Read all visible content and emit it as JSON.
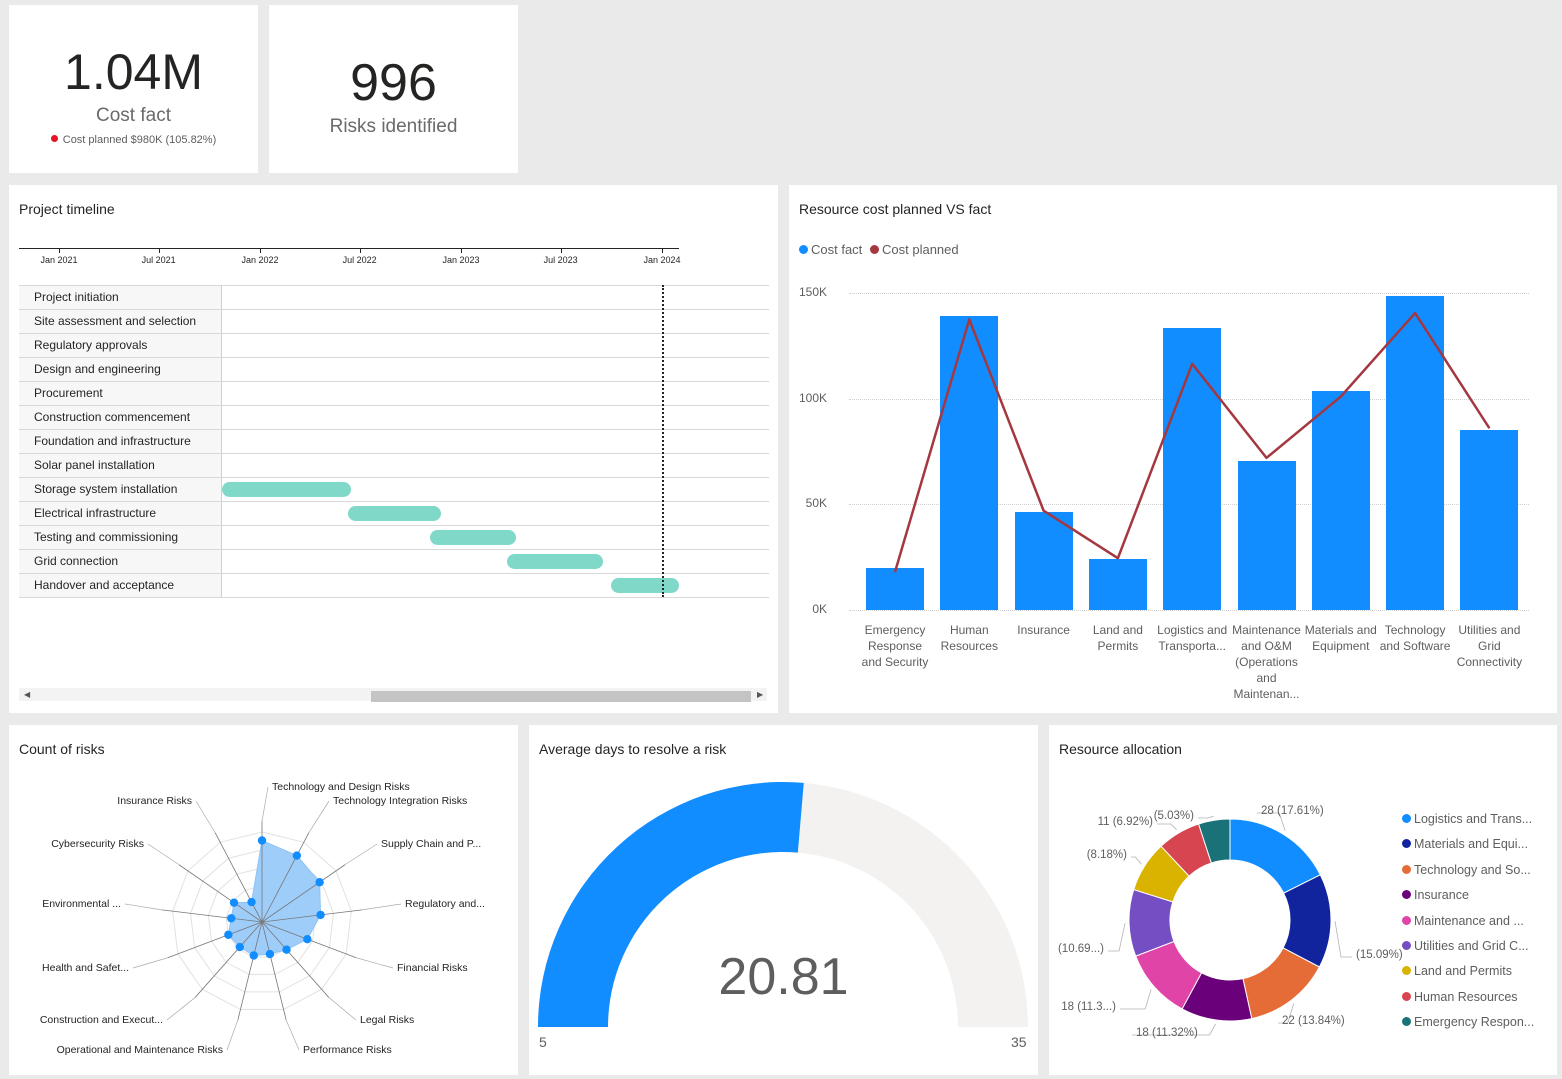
{
  "kpi_cost": {
    "value": "1.04M",
    "label": "Cost fact",
    "sub": "Cost planned $980K (105.82%)",
    "status_color": "#e81123"
  },
  "kpi_risks": {
    "value": "996",
    "label": "Risks identified"
  },
  "timeline": {
    "title": "Project timeline",
    "ticks": [
      "Jan 2021",
      "Jul 2021",
      "Jan 2022",
      "Jul 2022",
      "Jan 2023",
      "Jul 2023",
      "Jan 2024"
    ],
    "tasks": [
      {
        "label": "Project initiation",
        "start": null,
        "end": null
      },
      {
        "label": "Site assessment and selection",
        "start": null,
        "end": null
      },
      {
        "label": "Regulatory approvals",
        "start": null,
        "end": null
      },
      {
        "label": "Design and engineering",
        "start": null,
        "end": null
      },
      {
        "label": "Procurement",
        "start": null,
        "end": null
      },
      {
        "label": "Construction commencement",
        "start": null,
        "end": null
      },
      {
        "label": "Foundation and infrastructure",
        "start": null,
        "end": null
      },
      {
        "label": "Solar panel installation",
        "start": null,
        "end": null
      },
      {
        "label": "Storage system installation",
        "start": "2021-10-01",
        "end": "2022-06-15"
      },
      {
        "label": "Electrical infrastructure",
        "start": "2022-06-10",
        "end": "2022-11-25"
      },
      {
        "label": "Testing and commissioning",
        "start": "2022-11-05",
        "end": "2023-04-10"
      },
      {
        "label": "Grid connection",
        "start": "2023-03-25",
        "end": "2023-09-15"
      },
      {
        "label": "Handover and acceptance",
        "start": "2023-10-01",
        "end": "2024-02-01"
      }
    ],
    "today": "2024-01-01",
    "bar_color": "#7fd8c8"
  },
  "resource_cost": {
    "title": "Resource cost planned VS fact",
    "legend": [
      {
        "label": "Cost fact",
        "color": "#118dff"
      },
      {
        "label": "Cost planned",
        "color": "#a4373f"
      }
    ],
    "y_ticks": [
      "150K",
      "100K",
      "50K",
      "0K"
    ]
  },
  "risks_radar": {
    "title": "Count of risks",
    "labels": [
      "Technology and Design Risks",
      "Technology Integration Risks",
      "Supply Chain and P...",
      "Regulatory and...",
      "Financial Risks",
      "Legal Risks",
      "Performance Risks",
      "Operational and Maintenance Risks",
      "Construction and Execut...",
      "Health and Safet...",
      "Environmental ...",
      "Cybersecurity Risks",
      "Insurance Risks"
    ],
    "color": "#118dff"
  },
  "gauge": {
    "title": "Average days to resolve a risk",
    "value": "20.81",
    "min": "5",
    "max": "35",
    "color": "#118dff",
    "track_color": "#f3f2f1"
  },
  "resource_allocation": {
    "title": "Resource allocation",
    "legend": [
      {
        "label": "Logistics and Trans...",
        "color": "#118dff"
      },
      {
        "label": "Materials and Equi...",
        "color": "#12239e"
      },
      {
        "label": "Technology and So...",
        "color": "#e66c37"
      },
      {
        "label": "Insurance",
        "color": "#6b007b"
      },
      {
        "label": "Maintenance and ...",
        "color": "#e044a7"
      },
      {
        "label": "Utilities and Grid C...",
        "color": "#744ec2"
      },
      {
        "label": "Land and Permits",
        "color": "#d9b300"
      },
      {
        "label": "Human Resources",
        "color": "#d64550"
      },
      {
        "label": "Emergency Respon...",
        "color": "#197278"
      }
    ],
    "data_labels": [
      "28 (17.61%)",
      "(15.09%)",
      "22 (13.84%)",
      "18 (11.32%)",
      "18 (11.3...)",
      "(10.69...)",
      "(8.18%)",
      "11 (6.92%)",
      "(5.03%)"
    ]
  },
  "chart_data": [
    {
      "type": "bar",
      "title": "Resource cost planned VS fact",
      "categories": [
        "Emergency Response and Security",
        "Human Resources",
        "Insurance",
        "Land and Permits",
        "Logistics and Transporta...",
        "Maintenance and O&M (Operations and Maintenan...",
        "Materials and Equipment",
        "Technology and Software",
        "Utilities and Grid Connectivity"
      ],
      "series": [
        {
          "name": "Cost fact",
          "type": "bar",
          "values": [
            20000,
            139000,
            46500,
            24000,
            133500,
            70500,
            103500,
            148500,
            85000
          ]
        },
        {
          "name": "Cost planned",
          "type": "line",
          "values": [
            18000,
            137500,
            47000,
            24500,
            116500,
            72000,
            101000,
            140500,
            86000
          ]
        }
      ],
      "ylim": [
        0,
        150000
      ],
      "grid": true,
      "legend": "top-left"
    },
    {
      "type": "radar",
      "title": "Count of risks",
      "categories": [
        "Technology and Design Risks",
        "Technology Integration Risks",
        "Supply Chain and P...",
        "Regulatory and...",
        "Financial Risks",
        "Legal Risks",
        "Performance Risks",
        "Operational and Maintenance Risks",
        "Construction and Execut...",
        "Health and Safet...",
        "Environmental ...",
        "Cybersecurity Risks",
        "Insurance Risks"
      ],
      "values": [
        163,
        150,
        140,
        118,
        97,
        74,
        66,
        69,
        67,
        72,
        62,
        68,
        45
      ]
    },
    {
      "type": "gauge",
      "title": "Average days to resolve a risk",
      "value": 20.81,
      "min": 5,
      "max": 35
    },
    {
      "type": "pie",
      "title": "Resource allocation",
      "categories": [
        "Logistics and Trans...",
        "Materials and Equi...",
        "Technology and So...",
        "Insurance",
        "Maintenance and ...",
        "Utilities and Grid C...",
        "Land and Permits",
        "Human Resources",
        "Emergency Respon..."
      ],
      "values": [
        28,
        24,
        22,
        18,
        18,
        17,
        13,
        11,
        8
      ],
      "percent": [
        17.61,
        15.09,
        13.84,
        11.32,
        11.32,
        10.69,
        8.18,
        6.92,
        5.03
      ]
    }
  ]
}
